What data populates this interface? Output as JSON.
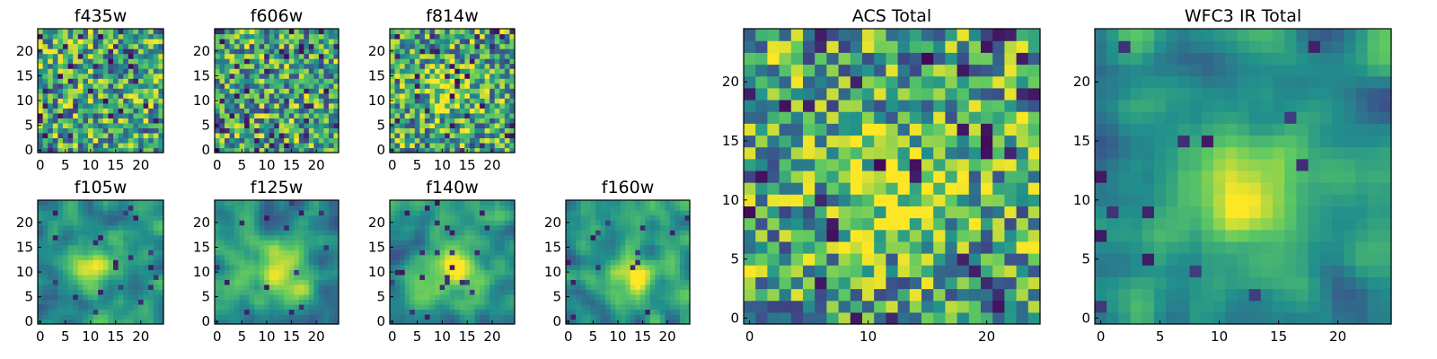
{
  "figure": {
    "colormap": [
      "#440154",
      "#3b528b",
      "#21918c",
      "#5ec962",
      "#fde725"
    ],
    "frame_color": "#000000",
    "background": "#ffffff"
  },
  "chart_data": [
    {
      "type": "heatmap",
      "title": "f435w",
      "grid": [
        25,
        25
      ],
      "xticks": [
        0,
        5,
        10,
        15,
        20
      ],
      "yticks": [
        0,
        5,
        10,
        15,
        20
      ],
      "xlim": [
        0,
        25
      ],
      "ylim": [
        0,
        25
      ],
      "pattern": "noise",
      "seed": 11
    },
    {
      "type": "heatmap",
      "title": "f606w",
      "grid": [
        25,
        25
      ],
      "xticks": [
        0,
        5,
        10,
        15,
        20
      ],
      "yticks": [
        0,
        5,
        10,
        15,
        20
      ],
      "xlim": [
        0,
        25
      ],
      "ylim": [
        0,
        25
      ],
      "pattern": "noise",
      "seed": 23
    },
    {
      "type": "heatmap",
      "title": "f814w",
      "grid": [
        25,
        25
      ],
      "xticks": [
        0,
        5,
        10,
        15,
        20
      ],
      "yticks": [
        0,
        5,
        10,
        15,
        20
      ],
      "xlim": [
        0,
        25
      ],
      "ylim": [
        0,
        25
      ],
      "pattern": "noise-with-center",
      "center": [
        12,
        12
      ],
      "seed": 37
    },
    {
      "type": "heatmap",
      "title": "f105w",
      "grid": [
        25,
        25
      ],
      "xticks": [
        0,
        5,
        10,
        15,
        20
      ],
      "yticks": [
        0,
        5,
        10,
        15,
        20
      ],
      "xlim": [
        0,
        25
      ],
      "ylim": [
        0,
        25
      ],
      "pattern": "smooth-center",
      "center": [
        11,
        11
      ],
      "seed": 41
    },
    {
      "type": "heatmap",
      "title": "f125w",
      "grid": [
        25,
        25
      ],
      "xticks": [
        0,
        5,
        10,
        15,
        20
      ],
      "yticks": [
        0,
        5,
        10,
        15,
        20
      ],
      "xlim": [
        0,
        25
      ],
      "ylim": [
        0,
        25
      ],
      "pattern": "smooth-center",
      "center": [
        13,
        10
      ],
      "seed": 53
    },
    {
      "type": "heatmap",
      "title": "f140w",
      "grid": [
        25,
        25
      ],
      "xticks": [
        0,
        5,
        10,
        15,
        20
      ],
      "yticks": [
        0,
        5,
        10,
        15,
        20
      ],
      "xlim": [
        0,
        25
      ],
      "ylim": [
        0,
        25
      ],
      "pattern": "smooth-center",
      "center": [
        12,
        11
      ],
      "seed": 67
    },
    {
      "type": "heatmap",
      "title": "f160w",
      "grid": [
        25,
        25
      ],
      "xticks": [
        0,
        5,
        10,
        15,
        20
      ],
      "yticks": [
        0,
        5,
        10,
        15,
        20
      ],
      "xlim": [
        0,
        25
      ],
      "ylim": [
        0,
        25
      ],
      "pattern": "smooth-center",
      "center": [
        13,
        9
      ],
      "seed": 79
    },
    {
      "type": "heatmap",
      "title": "ACS Total",
      "grid": [
        25,
        25
      ],
      "xticks": [
        0,
        10,
        20
      ],
      "yticks": [
        0,
        5,
        10,
        15,
        20
      ],
      "xlim": [
        0,
        25
      ],
      "ylim": [
        0,
        25
      ],
      "pattern": "noise-with-center",
      "center": [
        12,
        11
      ],
      "seed": 97
    },
    {
      "type": "heatmap",
      "title": "WFC3 IR Total",
      "grid": [
        25,
        25
      ],
      "xticks": [
        0,
        5,
        10,
        15,
        20
      ],
      "yticks": [
        0,
        5,
        10,
        15,
        20
      ],
      "xlim": [
        0,
        25
      ],
      "ylim": [
        0,
        25
      ],
      "pattern": "smooth-center",
      "center": [
        12,
        10
      ],
      "seed": 113
    }
  ]
}
